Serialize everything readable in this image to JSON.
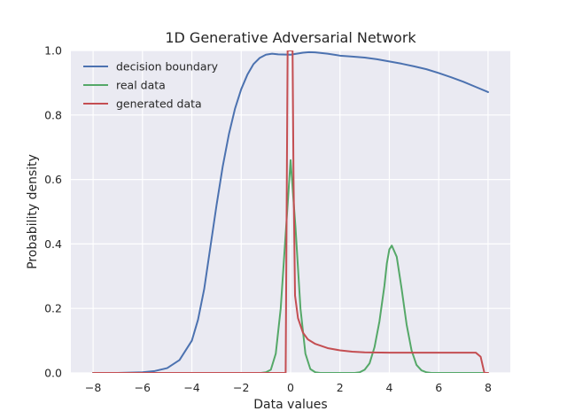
{
  "chart_data": {
    "type": "line",
    "title": "1D Generative Adversarial Network",
    "xlabel": "Data values",
    "ylabel": "Probability density",
    "xlim": [
      -8.9,
      8.9
    ],
    "ylim": [
      0.0,
      1.0
    ],
    "xticks": [
      -8,
      -6,
      -4,
      -2,
      0,
      2,
      4,
      6,
      8
    ],
    "xtick_labels": [
      "−8",
      "−6",
      "−4",
      "−2",
      "0",
      "2",
      "4",
      "6",
      "8"
    ],
    "yticks": [
      0.0,
      0.2,
      0.4,
      0.6,
      0.8,
      1.0
    ],
    "ytick_labels": [
      "0.0",
      "0.2",
      "0.4",
      "0.6",
      "0.8",
      "1.0"
    ],
    "grid": true,
    "legend_position": "upper-left",
    "background": "#eaeaf2",
    "series": [
      {
        "name": "decision boundary",
        "color": "#4c72b0",
        "points": [
          [
            -8,
            0.0
          ],
          [
            -7,
            0.0
          ],
          [
            -6,
            0.002
          ],
          [
            -5.5,
            0.006
          ],
          [
            -5,
            0.015
          ],
          [
            -4.5,
            0.04
          ],
          [
            -4,
            0.1
          ],
          [
            -3.75,
            0.165
          ],
          [
            -3.5,
            0.26
          ],
          [
            -3.25,
            0.39
          ],
          [
            -3,
            0.52
          ],
          [
            -2.75,
            0.64
          ],
          [
            -2.5,
            0.74
          ],
          [
            -2.25,
            0.82
          ],
          [
            -2,
            0.88
          ],
          [
            -1.75,
            0.925
          ],
          [
            -1.5,
            0.958
          ],
          [
            -1.25,
            0.977
          ],
          [
            -1,
            0.987
          ],
          [
            -0.75,
            0.99
          ],
          [
            -0.5,
            0.988
          ],
          [
            0,
            0.987
          ],
          [
            0.5,
            0.993
          ],
          [
            0.75,
            0.995
          ],
          [
            1,
            0.994
          ],
          [
            1.5,
            0.99
          ],
          [
            2,
            0.984
          ],
          [
            2.5,
            0.981
          ],
          [
            3,
            0.978
          ],
          [
            3.5,
            0.973
          ],
          [
            4,
            0.966
          ],
          [
            4.5,
            0.959
          ],
          [
            5,
            0.951
          ],
          [
            5.5,
            0.942
          ],
          [
            6,
            0.93
          ],
          [
            6.5,
            0.917
          ],
          [
            7,
            0.903
          ],
          [
            7.5,
            0.887
          ],
          [
            8,
            0.871
          ]
        ]
      },
      {
        "name": "real data",
        "color": "#55a868",
        "points": [
          [
            -8,
            0.0
          ],
          [
            -1.2,
            0.0
          ],
          [
            -1,
            0.002
          ],
          [
            -0.8,
            0.01
          ],
          [
            -0.6,
            0.06
          ],
          [
            -0.4,
            0.2
          ],
          [
            -0.2,
            0.43
          ],
          [
            0,
            0.66
          ],
          [
            0.2,
            0.45
          ],
          [
            0.4,
            0.2
          ],
          [
            0.6,
            0.06
          ],
          [
            0.8,
            0.012
          ],
          [
            1,
            0.002
          ],
          [
            1.2,
            0.0
          ],
          [
            2.6,
            0.0
          ],
          [
            2.8,
            0.002
          ],
          [
            3,
            0.01
          ],
          [
            3.2,
            0.03
          ],
          [
            3.4,
            0.08
          ],
          [
            3.6,
            0.16
          ],
          [
            3.8,
            0.27
          ],
          [
            3.9,
            0.34
          ],
          [
            4.0,
            0.383
          ],
          [
            4.1,
            0.395
          ],
          [
            4.3,
            0.36
          ],
          [
            4.5,
            0.26
          ],
          [
            4.7,
            0.15
          ],
          [
            4.9,
            0.07
          ],
          [
            5.1,
            0.025
          ],
          [
            5.3,
            0.008
          ],
          [
            5.5,
            0.002
          ],
          [
            5.7,
            0.0
          ],
          [
            8,
            0.0
          ]
        ]
      },
      {
        "name": "generated data",
        "color": "#c44e52",
        "points": [
          [
            -8,
            0.0
          ],
          [
            -0.2,
            0.0
          ],
          [
            -0.12,
            1.0
          ],
          [
            0.08,
            1.0
          ],
          [
            0.12,
            0.6
          ],
          [
            0.18,
            0.24
          ],
          [
            0.3,
            0.17
          ],
          [
            0.5,
            0.125
          ],
          [
            0.7,
            0.104
          ],
          [
            1,
            0.09
          ],
          [
            1.5,
            0.077
          ],
          [
            2,
            0.07
          ],
          [
            2.5,
            0.066
          ],
          [
            3,
            0.064
          ],
          [
            4,
            0.063
          ],
          [
            5,
            0.063
          ],
          [
            6,
            0.063
          ],
          [
            7,
            0.063
          ],
          [
            7.5,
            0.063
          ],
          [
            7.7,
            0.05
          ],
          [
            7.85,
            0.0
          ],
          [
            8,
            0.0
          ]
        ]
      }
    ]
  }
}
